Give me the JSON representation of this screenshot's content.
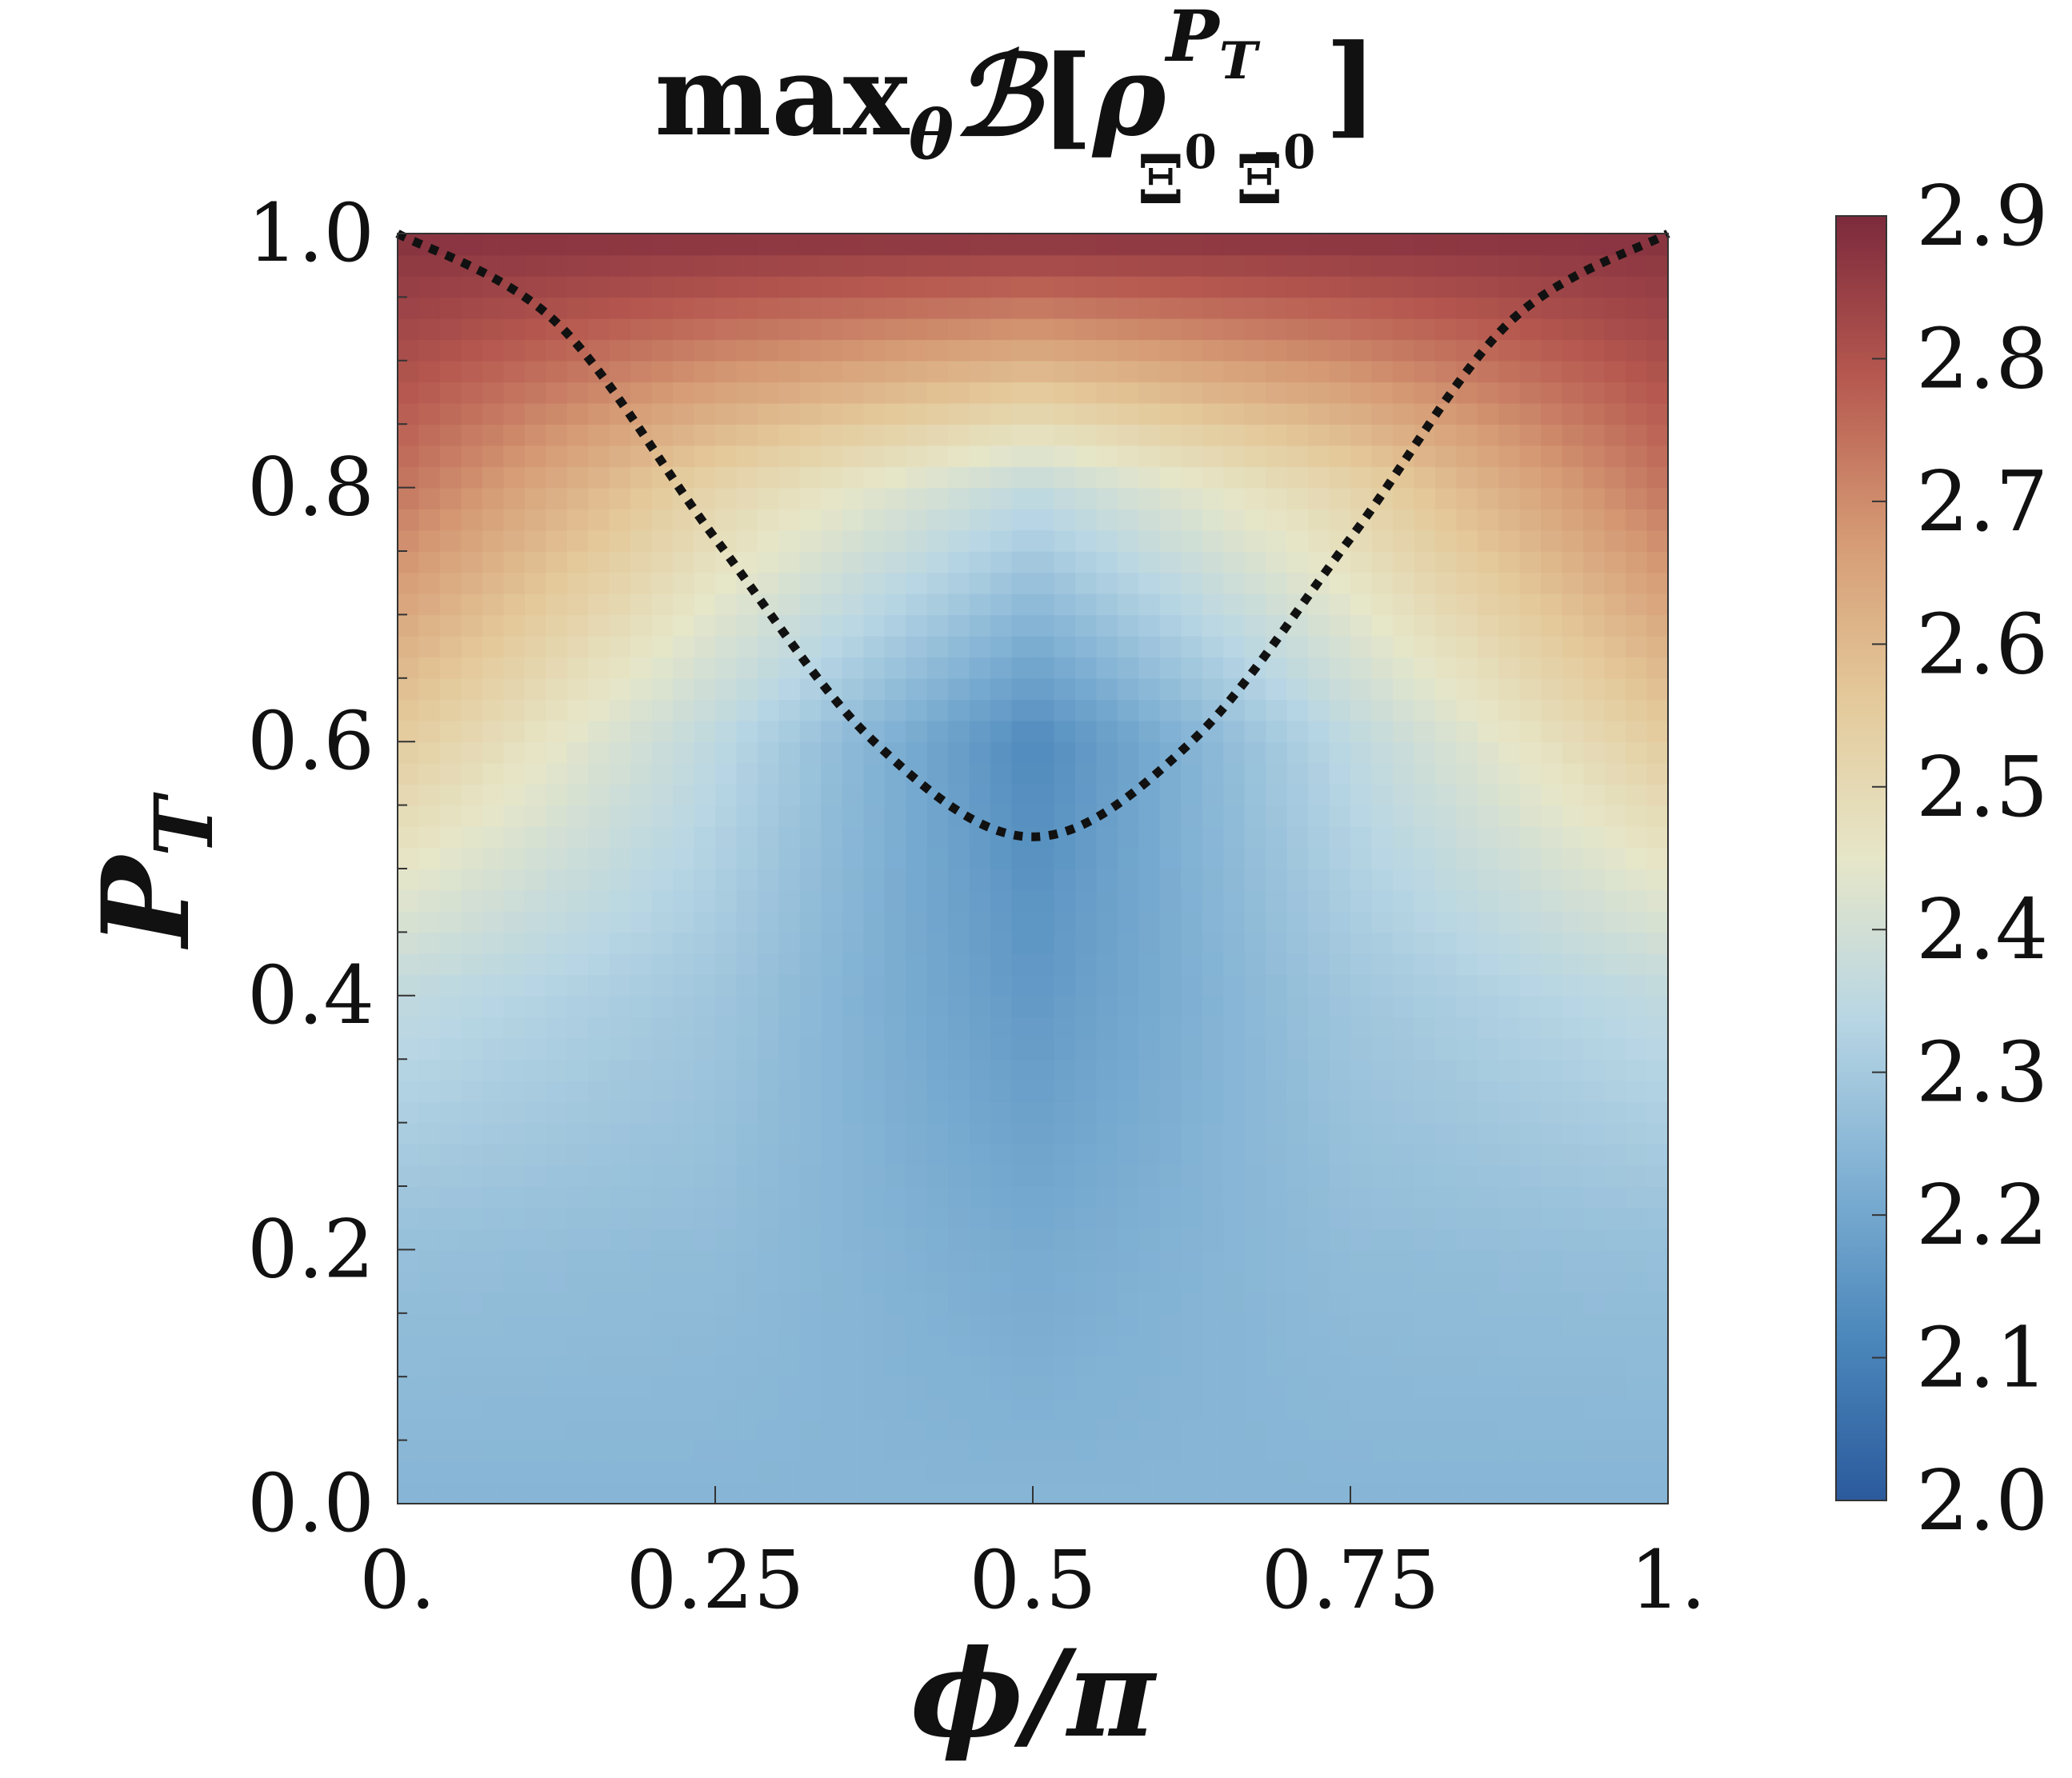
{
  "chart_data": {
    "type": "heatmap",
    "title": {
      "prefix": "max",
      "prefix_sub": "θ",
      "script_B": "ℬ",
      "open": "[",
      "rho": "ρ",
      "rho_sup": "P",
      "rho_sup_sub": "T",
      "rho_sub_1": "Ξ",
      "rho_sub_1_sup": "0",
      "rho_sub_2": "Ξ̄",
      "rho_sub_2_sup": "0",
      "close": "]"
    },
    "xlabel": "ϕ/π",
    "ylabel": {
      "main": "P",
      "sub": "T"
    },
    "xlim": [
      0,
      1
    ],
    "ylim": [
      0,
      1
    ],
    "xticks": [
      0,
      0.25,
      0.5,
      0.75,
      1
    ],
    "xtick_labels": [
      "0.",
      "0.25",
      "0.5",
      "0.75",
      "1."
    ],
    "yticks": [
      0,
      0.2,
      0.4,
      0.6,
      0.8,
      1.0
    ],
    "ytick_labels": [
      "0.0",
      "0.2",
      "0.4",
      "0.6",
      "0.8",
      "1.0"
    ],
    "colorbar": {
      "range": [
        2.0,
        2.9
      ],
      "ticks": [
        2.0,
        2.1,
        2.2,
        2.3,
        2.4,
        2.5,
        2.6,
        2.7,
        2.8,
        2.9
      ],
      "tick_labels": [
        "2.0",
        "2.1",
        "2.2",
        "2.3",
        "2.4",
        "2.5",
        "2.6",
        "2.7",
        "2.8",
        "2.9"
      ],
      "colormap": "RdYlBu_r",
      "colors": [
        "#2b5a9c",
        "#4b87bb",
        "#7fb0d3",
        "#b8d6e4",
        "#e6e6c8",
        "#e4c99a",
        "#d59a74",
        "#b6584f",
        "#7c2a3c"
      ]
    },
    "field_samples": {
      "description_of_values": "max_theta B over (phi/pi, P_T)",
      "x": [
        0,
        0.25,
        0.5,
        0.75,
        1
      ],
      "rows": [
        {
          "y": 0.0,
          "values": [
            2.24,
            2.24,
            2.24,
            2.24,
            2.24
          ]
        },
        {
          "y": 0.2,
          "values": [
            2.27,
            2.26,
            2.21,
            2.26,
            2.27
          ]
        },
        {
          "y": 0.4,
          "values": [
            2.36,
            2.29,
            2.16,
            2.29,
            2.36
          ]
        },
        {
          "y": 0.6,
          "values": [
            2.55,
            2.35,
            2.12,
            2.35,
            2.55
          ]
        },
        {
          "y": 0.8,
          "values": [
            2.74,
            2.52,
            2.36,
            2.52,
            2.74
          ]
        },
        {
          "y": 1.0,
          "values": [
            2.88,
            2.88,
            2.88,
            2.88,
            2.88
          ]
        }
      ]
    },
    "boundary_curve": {
      "style": "dotted",
      "color": "#111111",
      "x": [
        0,
        0.125,
        0.25,
        0.375,
        0.5,
        0.625,
        0.75,
        0.875,
        1
      ],
      "y": [
        1.0,
        0.93,
        0.76,
        0.6,
        0.525,
        0.6,
        0.76,
        0.93,
        1.0
      ]
    },
    "grid": false
  }
}
